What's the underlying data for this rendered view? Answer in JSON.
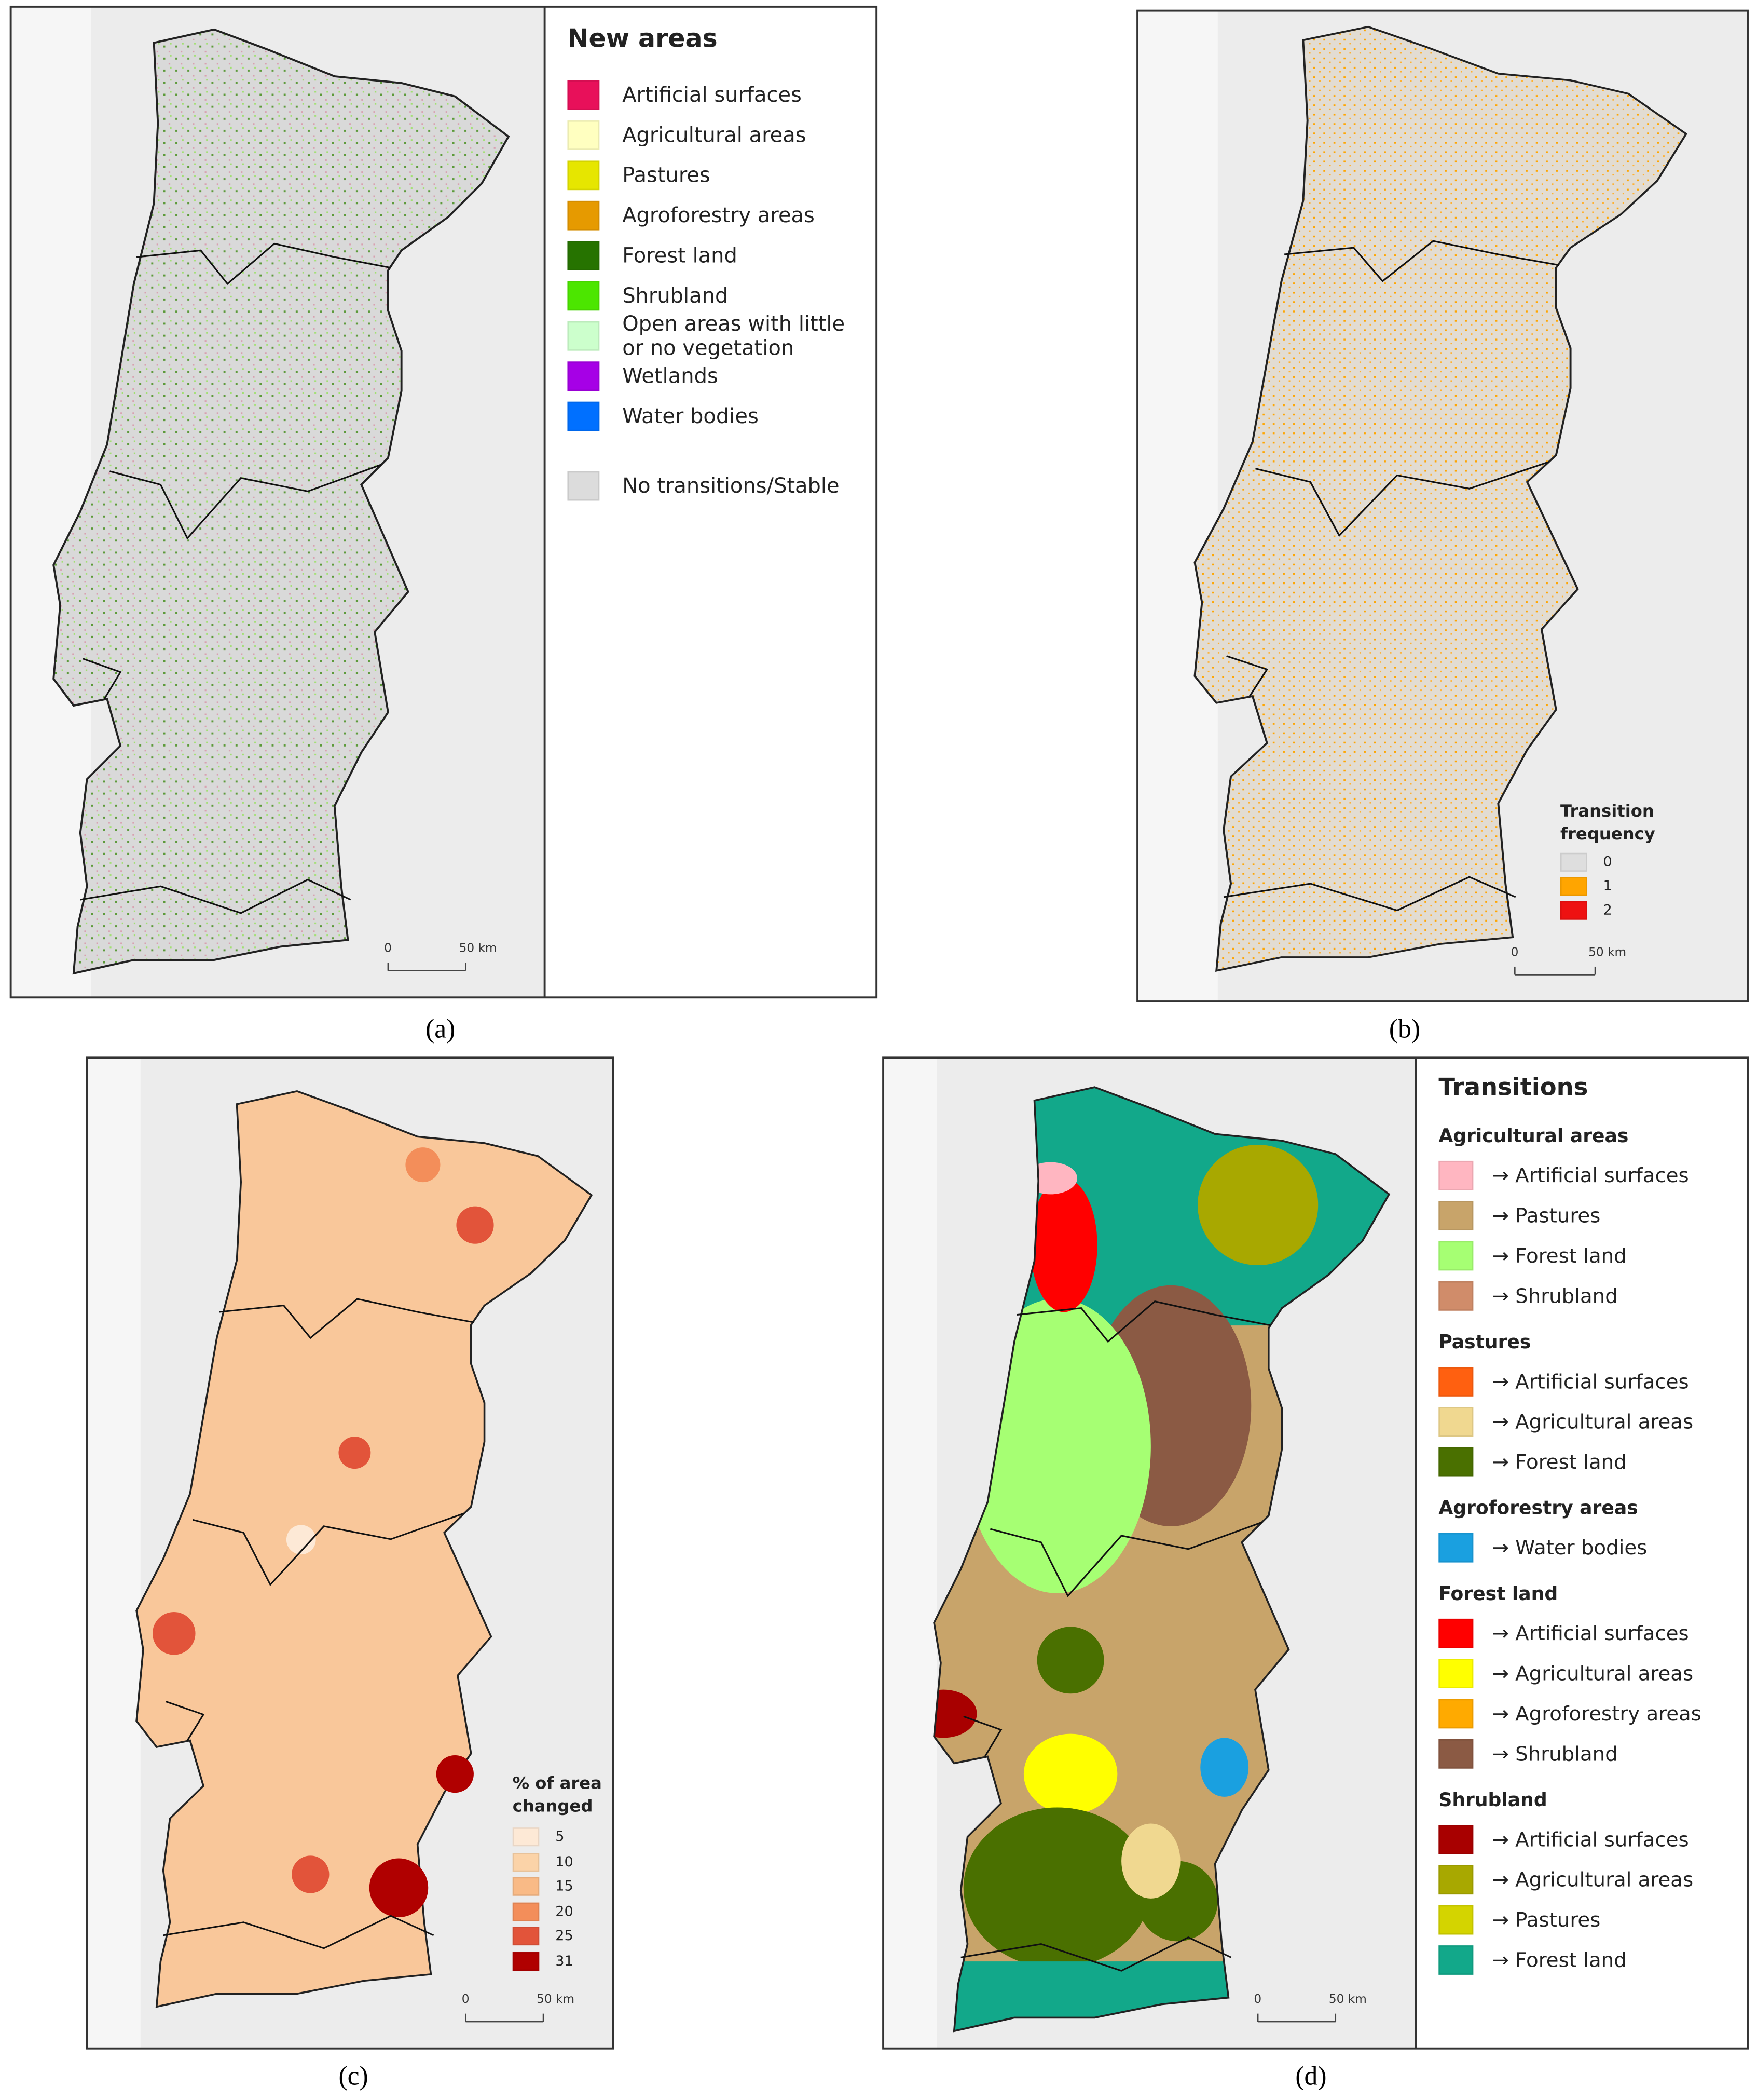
{
  "panels": [
    {
      "label": "(a)",
      "legend": {
        "title": "New areas",
        "items": [
          {
            "label": "Artificial surfaces",
            "color": "#e8105a"
          },
          {
            "label": "Agricultural areas",
            "color": "#ffffc0"
          },
          {
            "label": "Pastures",
            "color": "#e6e600"
          },
          {
            "label": "Agroforestry areas",
            "color": "#e69a00"
          },
          {
            "label": "Forest land",
            "color": "#267300"
          },
          {
            "label": "Shrubland",
            "color": "#4ce600"
          },
          {
            "label": "Open areas with little or no vegetation",
            "color": "#ccffcc"
          },
          {
            "label": "Wetlands",
            "color": "#a600e6"
          },
          {
            "label": "Water bodies",
            "color": "#0070ff"
          }
        ],
        "no_change": {
          "label": "No transitions/Stable",
          "color": "#dcdcdc"
        }
      },
      "scale_bar": {
        "start": 0,
        "end": "50 km"
      }
    },
    {
      "label": "(b)",
      "legend": {
        "title": "Transition frequency",
        "items": [
          {
            "value": 0,
            "color": "#dedede"
          },
          {
            "value": 1,
            "color": "#ffa500"
          },
          {
            "value": 2,
            "color": "#ee1111"
          }
        ]
      },
      "scale_bar": {
        "start": 0,
        "end": "50 km"
      }
    },
    {
      "label": "(c)",
      "legend": {
        "title": "% of area changed",
        "items": [
          {
            "value": 5,
            "color": "#fde9d6"
          },
          {
            "value": 10,
            "color": "#fbd3a8"
          },
          {
            "value": 15,
            "color": "#f9ba86"
          },
          {
            "value": 20,
            "color": "#f38e5a"
          },
          {
            "value": 25,
            "color": "#e2543a"
          },
          {
            "value": 31,
            "color": "#b00000"
          }
        ]
      },
      "scale_bar": {
        "start": 0,
        "end": "50 km"
      }
    },
    {
      "label": "(d)",
      "legend": {
        "title": "Transitions",
        "groups": [
          {
            "name": "Agricultural areas",
            "items": [
              {
                "label": "→ Artificial surfaces",
                "color": "#ffb6c1"
              },
              {
                "label": "→ Pastures",
                "color": "#c8a46a"
              },
              {
                "label": "→ Forest land",
                "color": "#a6ff73"
              },
              {
                "label": "→ Shrubland",
                "color": "#d08c6a"
              }
            ]
          },
          {
            "name": "Pastures",
            "items": [
              {
                "label": "→ Artificial surfaces",
                "color": "#ff6010"
              },
              {
                "label": "→ Agricultural areas",
                "color": "#f0d890"
              },
              {
                "label": "→ Forest land",
                "color": "#4a7000"
              }
            ]
          },
          {
            "name": "Agroforestry areas",
            "items": [
              {
                "label": "→ Water bodies",
                "color": "#1aa0e0"
              }
            ]
          },
          {
            "name": "Forest land",
            "items": [
              {
                "label": "→ Artificial surfaces",
                "color": "#ff0000"
              },
              {
                "label": "→ Agricultural areas",
                "color": "#ffff00"
              },
              {
                "label": "→ Agroforestry areas",
                "color": "#ffaa00"
              },
              {
                "label": "→ Shrubland",
                "color": "#8b5a44"
              }
            ]
          },
          {
            "name": "Shrubland",
            "items": [
              {
                "label": "→ Artificial surfaces",
                "color": "#a80000"
              },
              {
                "label": "→ Agricultural areas",
                "color": "#a8a800"
              },
              {
                "label": "→ Pastures",
                "color": "#d4d400"
              },
              {
                "label": "→ Forest land",
                "color": "#12a88a"
              }
            ]
          }
        ]
      },
      "scale_bar": {
        "start": 0,
        "end": "50 km"
      }
    }
  ]
}
